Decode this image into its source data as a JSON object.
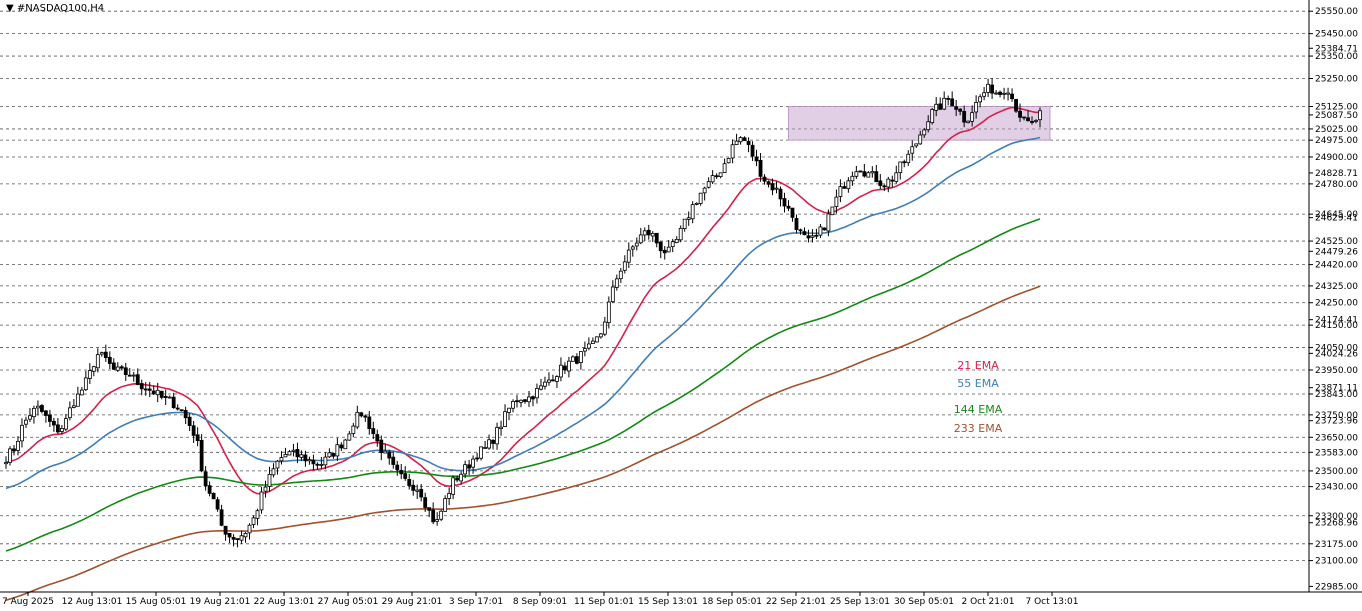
{
  "header": {
    "title": "#NASDAQ100,H4"
  },
  "legend": [
    {
      "label": "21 EMA",
      "color": "#d6204a"
    },
    {
      "label": "55 EMA",
      "color": "#3f7fb8"
    },
    {
      "label": "144 EMA",
      "color": "#138a13"
    },
    {
      "label": "233 EMA",
      "color": "#a0522d"
    }
  ],
  "chart_data": {
    "type": "candlestick",
    "symbol": "#NASDAQ100",
    "timeframe": "H4",
    "ylim": [
      22960,
      25600
    ],
    "y_ticks": [
      22985,
      23100,
      23175,
      23268.96,
      23300,
      23430,
      23500,
      23583,
      23650,
      23723.96,
      23750,
      23843,
      23871.11,
      23950,
      24024.26,
      24050,
      24150,
      24174.41,
      24250,
      24325,
      24420,
      24479.26,
      24525,
      24629.41,
      24645,
      24780,
      24828.71,
      24900,
      24975,
      25025,
      25087.5,
      25125,
      25250,
      25350,
      25384.71,
      25450,
      25550
    ],
    "y_tick_labels": [
      "22985.00",
      "23100.00",
      "23175.00",
      "23268.96",
      "23300.00",
      "23430.00",
      "23500.00",
      "23583.00",
      "23650.00",
      "23723.96",
      "23750.00",
      "23843.00",
      "23871.11",
      "23950.00",
      "24024.26",
      "24050.00",
      "24150.00",
      "24174.41",
      "24250.00",
      "24325.00",
      "24420.00",
      "24479.26",
      "24525.00",
      "24629.41",
      "24645.00",
      "24780.00",
      "24828.71",
      "24900.00",
      "24975.00",
      "25025.00",
      "25087.50",
      "25125.00",
      "25250.00",
      "25350.00",
      "25384.71",
      "25450.00",
      "25550.00"
    ],
    "dashed_levels": [
      23100,
      23175,
      23300,
      23430,
      23500,
      23583,
      23650,
      23750,
      23843,
      23950,
      24050,
      24150,
      24250,
      24325,
      24420,
      24525,
      24645,
      24780,
      24900,
      24975,
      25025,
      25125,
      25250,
      25350,
      25450,
      25550
    ],
    "x_tick_labels": [
      "7 Aug 2025",
      "12 Aug 13:01",
      "15 Aug 05:01",
      "19 Aug 21:01",
      "22 Aug 13:01",
      "27 Aug 05:01",
      "29 Aug 21:01",
      "3 Sep 17:01",
      "8 Sep 09:01",
      "11 Sep 01:01",
      "15 Sep 13:01",
      "18 Sep 05:01",
      "22 Sep 21:01",
      "25 Sep 13:01",
      "30 Sep 05:01",
      "2 Oct 21:01",
      "7 Oct 13:01"
    ],
    "zone": {
      "x_start": "22 Sep 2025",
      "x_end": "7 Oct 2025",
      "price_low": 24975,
      "price_high": 25125
    },
    "close_path": [
      23560,
      23600,
      23700,
      23760,
      23780,
      23730,
      23680,
      23700,
      23800,
      23850,
      23920,
      24020,
      24000,
      23950,
      23940,
      23930,
      23890,
      23870,
      23850,
      23820,
      23810,
      23780,
      23720,
      23650,
      23450,
      23380,
      23260,
      23210,
      23200,
      23230,
      23290,
      23400,
      23480,
      23550,
      23580,
      23570,
      23560,
      23540,
      23530,
      23560,
      23600,
      23640,
      23720,
      23760,
      23700,
      23620,
      23560,
      23500,
      23460,
      23440,
      23420,
      23330,
      23260,
      23360,
      23450,
      23490,
      23530,
      23580,
      23600,
      23650,
      23720,
      23790,
      23830,
      23820,
      23850,
      23880,
      23920,
      23950,
      23980,
      24000,
      24030,
      24060,
      24120,
      24260,
      24380,
      24450,
      24510,
      24560,
      24560,
      24500,
      24470,
      24520,
      24600,
      24680,
      24740,
      24780,
      24820,
      24880,
      24960,
      24990,
      24930,
      24850,
      24780,
      24760,
      24700,
      24640,
      24560,
      24520,
      24540,
      24600,
      24680,
      24760,
      24820,
      24860,
      24830,
      24810,
      24780,
      24800,
      24850,
      24900,
      24960,
      25040,
      25100,
      25130,
      25160,
      25120,
      25060,
      25120,
      25180,
      25210,
      25180,
      25220,
      25130,
      25060,
      25040,
      25090
    ]
  }
}
